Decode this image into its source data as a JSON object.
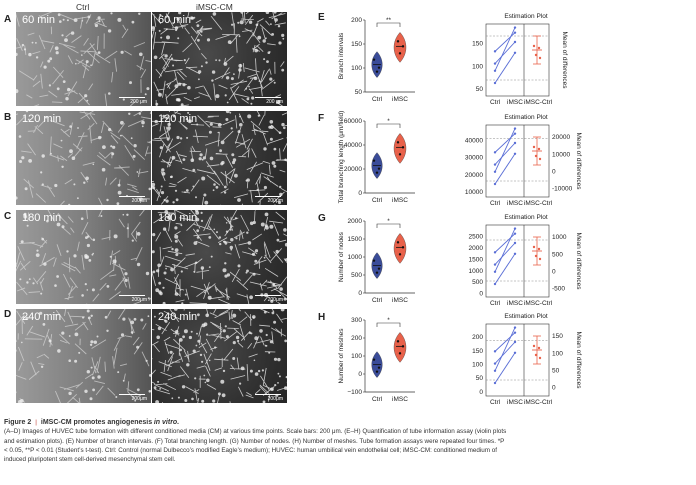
{
  "columns": {
    "ctrl": "Ctrl",
    "imsc": "iMSC-CM"
  },
  "rows": [
    {
      "letter": "A",
      "time": "60 min",
      "scale": "200 μm"
    },
    {
      "letter": "B",
      "time": "120 min",
      "scale": "200μm"
    },
    {
      "letter": "C",
      "time": "180 min",
      "scale": "200μm"
    },
    {
      "letter": "D",
      "time": "240 min",
      "scale": "200μm"
    }
  ],
  "panels": [
    {
      "letter": "E",
      "ylabel": "Branch intervals",
      "yticks": [
        "50",
        "100",
        "150",
        "200"
      ],
      "sig": "**",
      "est_left": [
        "50",
        "100",
        "150"
      ],
      "est_right": [],
      "est_ylabel": "Mean of differences"
    },
    {
      "letter": "F",
      "ylabel": "Total branching length (μm/field)",
      "yticks": [
        "0",
        "20000",
        "40000",
        "60000"
      ],
      "sig": "*",
      "est_left": [
        "10000",
        "20000",
        "30000",
        "40000"
      ],
      "est_right": [
        "-10000",
        "0",
        "10000",
        "20000"
      ],
      "est_ylabel": "Mean of differences"
    },
    {
      "letter": "G",
      "ylabel": "Number of nodes",
      "yticks": [
        "0",
        "500",
        "1000",
        "1500",
        "2000"
      ],
      "sig": "*",
      "est_left": [
        "0",
        "500",
        "1000",
        "1500",
        "2000",
        "2500"
      ],
      "est_right": [
        "-500",
        "0",
        "500",
        "1000"
      ],
      "est_ylabel": "Mean of differences"
    },
    {
      "letter": "H",
      "ylabel": "Number of meshes",
      "yticks": [
        "−100",
        "0",
        "100",
        "200",
        "300"
      ],
      "sig": "*",
      "est_left": [
        "0",
        "50",
        "100",
        "150",
        "200"
      ],
      "est_right": [
        "0",
        "50",
        "100",
        "150"
      ],
      "est_ylabel": "Mean of differences"
    }
  ],
  "violin_x": [
    "Ctrl",
    "iMSC"
  ],
  "est_x": [
    "Ctrl",
    "iMSC",
    "iMSC-Ctrl"
  ],
  "est_title": "Estimation Plot",
  "caption": {
    "fig": "Figure 2",
    "title": "iMSC-CM promotes angiogenesis",
    "title_italic": "in vitro.",
    "body1": "(A–D) Images of HUVEC tube formation with different conditioned media (CM) at various time points. Scale bars: 200 μm. (E–H) Quantification of tube information assay (violin plots",
    "body2": "and estimation plots). (E) Number of branch intervals. (F) Total branching length. (G) Number of nodes. (H) Number of meshes. Tube formation assays were repeated four times. *P",
    "body3": "< 0.05, **P < 0.01 (Student’s t-test). Ctrl: Control (normal Dulbecco’s modified Eagle’s medium); HUVEC: human umbilical vein endothelial cell; iMSC-CM: conditioned medium of",
    "body4": "induced pluripotent stem cell-derived mesenchymal stem cell."
  },
  "colors": {
    "ctrl": "#3a4c99",
    "imsc": "#e8614a",
    "line": "#5b6fd6",
    "est": "#e8614a"
  }
}
